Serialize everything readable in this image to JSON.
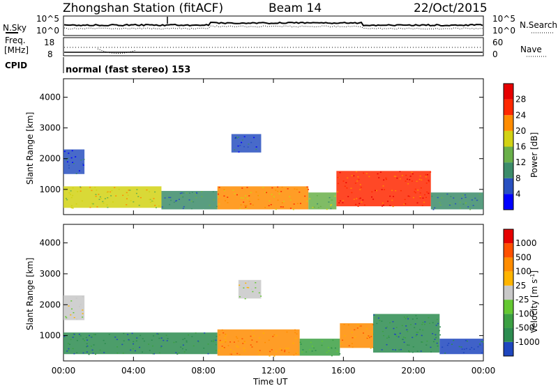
{
  "header": {
    "title": "Zhongshan Station (fitACF)",
    "beam": "Beam 14",
    "date": "22/Oct/2015"
  },
  "panels": {
    "nsky": {
      "left_label": "N.Sky",
      "right_label": "N.Search",
      "left_ticks": [
        "10^5",
        "10^0"
      ],
      "right_ticks": [
        "10^5",
        "10^0"
      ]
    },
    "freq": {
      "left_label_top": "Freq.",
      "left_label_bottom": "[MHz]",
      "left_ticks": [
        "18",
        "8"
      ],
      "right_label": "Nave",
      "right_ticks": [
        "60",
        "0"
      ]
    },
    "cpid": {
      "label": "CPID",
      "value": "normal (fast stereo) 153"
    }
  },
  "chart_data": [
    {
      "type": "heatmap",
      "title": "",
      "xlabel": "Time UT",
      "ylabel": "Slant Range [km]",
      "xlim_hours": [
        0,
        24
      ],
      "ylim": [
        180,
        4600
      ],
      "x_ticks": [
        "00:00",
        "04:00",
        "08:00",
        "12:00",
        "16:00",
        "20:00",
        "00:00"
      ],
      "y_ticks": [
        "1000",
        "2000",
        "3000",
        "4000"
      ],
      "colorbar": {
        "label": "Power [dB]",
        "ticks": [
          "4",
          "8",
          "12",
          "16",
          "20",
          "24",
          "28"
        ],
        "colors": [
          "#0000ff",
          "#2850c0",
          "#3c8c6a",
          "#6ab04a",
          "#d2d214",
          "#ff8c00",
          "#ff2800",
          "#e60000"
        ]
      },
      "regions": [
        {
          "t0": 0.0,
          "t1": 5.6,
          "r0": 400,
          "r1": 1100,
          "level": 4
        },
        {
          "t0": 0.0,
          "t1": 1.2,
          "r0": 1500,
          "r1": 2300,
          "level": 1
        },
        {
          "t0": 5.6,
          "t1": 8.8,
          "r0": 350,
          "r1": 950,
          "level": 2
        },
        {
          "t0": 8.8,
          "t1": 14.0,
          "r0": 350,
          "r1": 1100,
          "level": 5
        },
        {
          "t0": 9.6,
          "t1": 11.3,
          "r0": 2200,
          "r1": 2800,
          "level": 1
        },
        {
          "t0": 14.0,
          "t1": 15.6,
          "r0": 350,
          "r1": 900,
          "level": 3
        },
        {
          "t0": 15.6,
          "t1": 21.0,
          "r0": 450,
          "r1": 1600,
          "level": 6
        },
        {
          "t0": 21.0,
          "t1": 24.0,
          "r0": 350,
          "r1": 900,
          "level": 2
        }
      ]
    },
    {
      "type": "heatmap",
      "title": "",
      "xlabel": "Time UT",
      "ylabel": "Slant Range [km]",
      "xlim_hours": [
        0,
        24
      ],
      "ylim": [
        180,
        4600
      ],
      "x_ticks": [
        "00:00",
        "04:00",
        "08:00",
        "12:00",
        "16:00",
        "20:00",
        "00:00"
      ],
      "y_ticks": [
        "1000",
        "2000",
        "3000",
        "4000"
      ],
      "colorbar": {
        "label": "Velocity [m s^-1]",
        "ticks": [
          "1000",
          "500",
          "100",
          "25",
          "-25",
          "-100",
          "-500",
          "-1000"
        ],
        "colors": [
          "#1e46be",
          "#2d8c50",
          "#3ca043",
          "#64c832",
          "#c8c8c8",
          "#ffb400",
          "#ff8c00",
          "#ff5000",
          "#e60000"
        ]
      },
      "regions": [
        {
          "t0": 0.0,
          "t1": 8.8,
          "r0": 400,
          "r1": 1100,
          "level": 1
        },
        {
          "t0": 0.0,
          "t1": 1.2,
          "r0": 1500,
          "r1": 2300,
          "level": 4
        },
        {
          "t0": 8.8,
          "t1": 13.5,
          "r0": 350,
          "r1": 1200,
          "level": 6
        },
        {
          "t0": 10.0,
          "t1": 11.3,
          "r0": 2200,
          "r1": 2800,
          "level": 4
        },
        {
          "t0": 13.5,
          "t1": 15.8,
          "r0": 350,
          "r1": 900,
          "level": 2
        },
        {
          "t0": 15.8,
          "t1": 17.7,
          "r0": 600,
          "r1": 1400,
          "level": 6
        },
        {
          "t0": 17.7,
          "t1": 21.5,
          "r0": 450,
          "r1": 1700,
          "level": 1
        },
        {
          "t0": 21.5,
          "t1": 24.0,
          "r0": 400,
          "r1": 900,
          "level": 0
        }
      ]
    }
  ]
}
